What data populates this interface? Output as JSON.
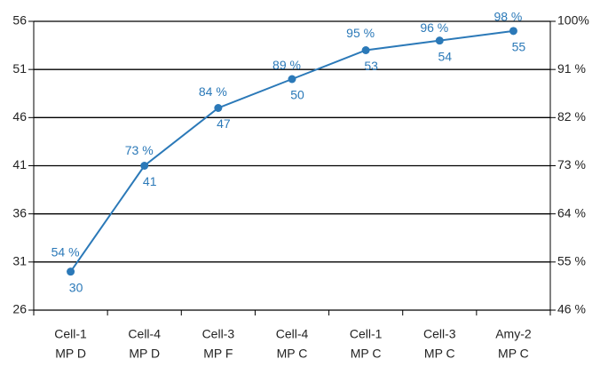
{
  "chart_data": {
    "type": "line",
    "categories": [
      [
        "Cell-1",
        "MP D"
      ],
      [
        "Cell-4",
        "MP D"
      ],
      [
        "Cell-3",
        "MP F"
      ],
      [
        "Cell-4",
        "MP C"
      ],
      [
        "Cell-1",
        "MP C"
      ],
      [
        "Cell-3",
        "MP C"
      ],
      [
        "Amy-2",
        "MP C"
      ]
    ],
    "series": [
      {
        "color": "#2b79b8",
        "values": [
          30,
          41,
          47,
          50,
          53,
          54,
          55
        ]
      },
      {
        "axis": "y2",
        "color": "#2b79b8",
        "values": [
          54,
          73,
          84,
          89,
          95,
          96,
          98
        ],
        "value_labels": [
          "54 %",
          "73 %",
          "84 %",
          "89 %",
          "95 %",
          "96 %",
          "98 %"
        ]
      }
    ],
    "ylim": [
      26,
      56
    ],
    "yticks": [
      26,
      31,
      36,
      41,
      46,
      51,
      56
    ],
    "y2lim": [
      46,
      100
    ],
    "y2ticks": [
      {
        "value": 46,
        "label": "46 %"
      },
      {
        "value": 55,
        "label": "55 %"
      },
      {
        "value": 64,
        "label": "64 %"
      },
      {
        "value": 73,
        "label": "73 %"
      },
      {
        "value": 82,
        "label": "82 %"
      },
      {
        "value": 91,
        "label": "91 %"
      },
      {
        "value": 100,
        "label": "100%"
      }
    ],
    "grid": true
  }
}
